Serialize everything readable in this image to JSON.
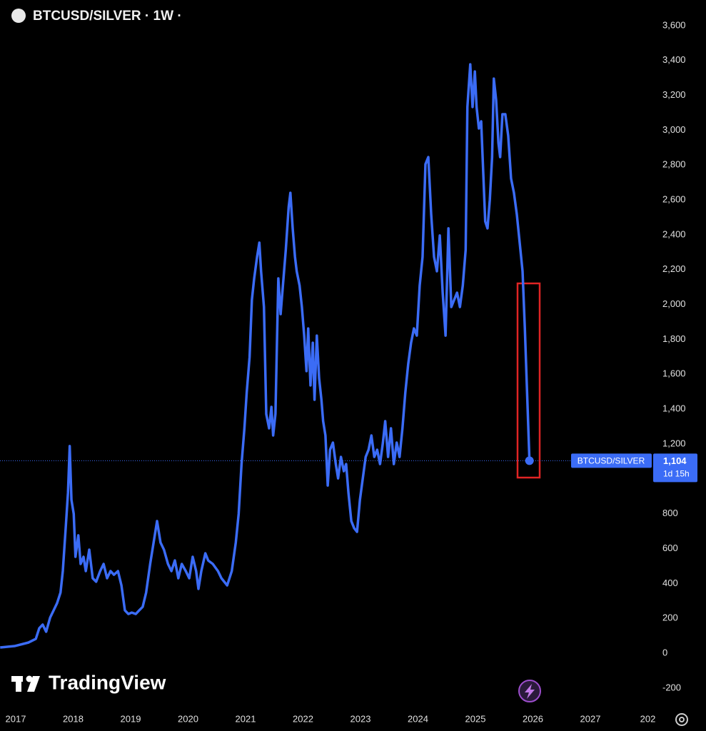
{
  "chart_data": {
    "type": "line",
    "title": "BTCUSD/SILVER · 1W ·",
    "x": [
      2016.73,
      2016.98,
      2017.22,
      2017.35,
      2017.41,
      2017.47,
      2017.53,
      2017.6,
      2017.66,
      2017.72,
      2017.78,
      2017.82,
      2017.87,
      2017.91,
      2017.94,
      2017.97,
      2018.01,
      2018.04,
      2018.09,
      2018.13,
      2018.18,
      2018.22,
      2018.28,
      2018.34,
      2018.4,
      2018.47,
      2018.53,
      2018.59,
      2018.65,
      2018.71,
      2018.78,
      2018.84,
      2018.9,
      2018.96,
      2019.02,
      2019.09,
      2019.15,
      2019.21,
      2019.27,
      2019.34,
      2019.4,
      2019.46,
      2019.52,
      2019.58,
      2019.65,
      2019.71,
      2019.77,
      2019.83,
      2019.89,
      2019.96,
      2020.02,
      2020.08,
      2020.14,
      2020.18,
      2020.23,
      2020.3,
      2020.35,
      2020.43,
      2020.52,
      2020.58,
      2020.68,
      2020.76,
      2020.83,
      2020.88,
      2020.93,
      2020.98,
      2021.02,
      2021.07,
      2021.11,
      2021.15,
      2021.2,
      2021.24,
      2021.27,
      2021.32,
      2021.36,
      2021.41,
      2021.45,
      2021.48,
      2021.52,
      2021.57,
      2021.61,
      2021.65,
      2021.7,
      2021.75,
      2021.78,
      2021.82,
      2021.86,
      2021.89,
      2021.94,
      2021.98,
      2022.02,
      2022.06,
      2022.09,
      2022.13,
      2022.17,
      2022.2,
      2022.24,
      2022.28,
      2022.32,
      2022.35,
      2022.39,
      2022.43,
      2022.47,
      2022.52,
      2022.57,
      2022.61,
      2022.66,
      2022.71,
      2022.75,
      2022.79,
      2022.84,
      2022.89,
      2022.94,
      2022.99,
      2023.04,
      2023.09,
      2023.14,
      2023.19,
      2023.24,
      2023.29,
      2023.34,
      2023.39,
      2023.43,
      2023.48,
      2023.53,
      2023.58,
      2023.63,
      2023.68,
      2023.73,
      2023.78,
      2023.83,
      2023.88,
      2023.93,
      2023.98,
      2024.03,
      2024.08,
      2024.13,
      2024.18,
      2024.23,
      2024.28,
      2024.33,
      2024.38,
      2024.43,
      2024.48,
      2024.53,
      2024.58,
      2024.63,
      2024.68,
      2024.73,
      2024.78,
      2024.83,
      2024.86,
      2024.91,
      2024.95,
      2024.99,
      2025.02,
      2025.06,
      2025.1,
      2025.14,
      2025.17,
      2025.21,
      2025.25,
      2025.29,
      2025.32,
      2025.36,
      2025.4,
      2025.43,
      2025.47,
      2025.52,
      2025.57,
      2025.62,
      2025.67,
      2025.72,
      2025.77,
      2025.82,
      2025.86,
      2025.89,
      2025.94
    ],
    "series": [
      {
        "name": "BTCUSD/SILVER",
        "color": "#3b6cf6",
        "values": [
          33,
          41,
          61,
          82,
          143,
          164,
          123,
          205,
          246,
          287,
          348,
          471,
          717,
          921,
          1188,
          880,
          799,
          553,
          676,
          512,
          553,
          471,
          594,
          430,
          410,
          471,
          512,
          430,
          471,
          450,
          471,
          389,
          246,
          225,
          233,
          225,
          246,
          266,
          348,
          512,
          635,
          758,
          635,
          594,
          512,
          471,
          532,
          430,
          512,
          471,
          430,
          553,
          471,
          369,
          471,
          573,
          532,
          512,
          471,
          430,
          389,
          471,
          635,
          799,
          1085,
          1290,
          1495,
          1699,
          2027,
          2150,
          2273,
          2355,
          2191,
          1986,
          1372,
          1290,
          1413,
          1249,
          1372,
          2150,
          1945,
          2109,
          2314,
          2559,
          2641,
          2437,
          2273,
          2191,
          2109,
          1986,
          1822,
          1618,
          1863,
          1536,
          1781,
          1454,
          1822,
          1577,
          1454,
          1331,
          1249,
          962,
          1167,
          1208,
          1085,
          1003,
          1126,
          1044,
          1085,
          921,
          758,
          717,
          696,
          880,
          1003,
          1126,
          1167,
          1249,
          1126,
          1167,
          1085,
          1208,
          1331,
          1126,
          1290,
          1085,
          1208,
          1126,
          1290,
          1495,
          1658,
          1781,
          1863,
          1822,
          2109,
          2273,
          2805,
          2846,
          2518,
          2273,
          2191,
          2396,
          2068,
          1822,
          2437,
          1986,
          2027,
          2068,
          1986,
          2109,
          2314,
          3133,
          3378,
          3133,
          3337,
          3133,
          3010,
          3051,
          2723,
          2477,
          2437,
          2600,
          2846,
          3296,
          3174,
          2928,
          2846,
          3092,
          3092,
          2969,
          2723,
          2641,
          2518,
          2355,
          2191,
          1863,
          1577,
          1104
        ]
      }
    ],
    "last_price": {
      "value": 1104,
      "label": "1,104",
      "countdown": "1d 15h"
    },
    "xlim": [
      2016.727,
      2028.155
    ],
    "xticks": [
      2017,
      2018,
      2019,
      2020,
      2021,
      2022,
      2023,
      2024,
      2025,
      2026,
      2027,
      {
        "value": 2028,
        "label": "202"
      }
    ],
    "ylim": [
      -348,
      3747
    ],
    "yticks": [
      -200,
      0,
      200,
      400,
      600,
      800,
      {
        "value": 1200,
        "label": "1,200"
      },
      {
        "value": 1400,
        "label": "1,400"
      },
      {
        "value": 1600,
        "label": "1,600"
      },
      {
        "value": 1800,
        "label": "1,800"
      },
      {
        "value": 2000,
        "label": "2,000"
      },
      {
        "value": 2200,
        "label": "2,200"
      },
      {
        "value": 2400,
        "label": "2,400"
      },
      {
        "value": 2600,
        "label": "2,600"
      },
      {
        "value": 2800,
        "label": "2,800"
      },
      {
        "value": 3000,
        "label": "3,000"
      },
      {
        "value": 3200,
        "label": "3,200"
      },
      {
        "value": 3400,
        "label": "3,400"
      },
      {
        "value": 3600,
        "label": "3,600"
      }
    ],
    "grid": false,
    "watermark": "TradingView"
  }
}
